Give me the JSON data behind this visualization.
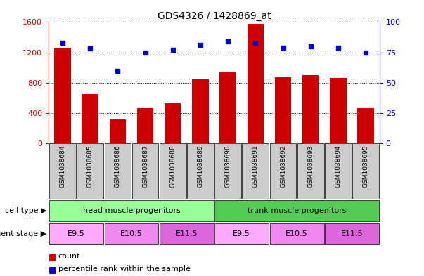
{
  "title": "GDS4326 / 1428869_at",
  "samples": [
    "GSM1038684",
    "GSM1038685",
    "GSM1038686",
    "GSM1038687",
    "GSM1038688",
    "GSM1038689",
    "GSM1038690",
    "GSM1038691",
    "GSM1038692",
    "GSM1038693",
    "GSM1038694",
    "GSM1038695"
  ],
  "counts": [
    1265,
    650,
    320,
    470,
    530,
    850,
    940,
    1580,
    870,
    900,
    860,
    470
  ],
  "percentiles": [
    83,
    78,
    60,
    75,
    77,
    81,
    84,
    83,
    79,
    80,
    79,
    75
  ],
  "ylim_left": [
    0,
    1600
  ],
  "ylim_right": [
    0,
    100
  ],
  "yticks_left": [
    0,
    400,
    800,
    1200,
    1600
  ],
  "yticks_right": [
    0,
    25,
    50,
    75,
    100
  ],
  "bar_color": "#cc0000",
  "dot_color": "#0000cc",
  "cell_type_groups": [
    {
      "label": "head muscle progenitors",
      "start": 0,
      "end": 5,
      "color": "#99ff99"
    },
    {
      "label": "trunk muscle progenitors",
      "start": 6,
      "end": 11,
      "color": "#55cc55"
    }
  ],
  "dev_stage_groups": [
    {
      "label": "E9.5",
      "start": 0,
      "end": 1,
      "color": "#ffaaff"
    },
    {
      "label": "E10.5",
      "start": 2,
      "end": 3,
      "color": "#ee88ee"
    },
    {
      "label": "E11.5",
      "start": 4,
      "end": 5,
      "color": "#dd66dd"
    },
    {
      "label": "E9.5",
      "start": 6,
      "end": 7,
      "color": "#ffaaff"
    },
    {
      "label": "E10.5",
      "start": 8,
      "end": 9,
      "color": "#ee88ee"
    },
    {
      "label": "E11.5",
      "start": 10,
      "end": 11,
      "color": "#dd66dd"
    }
  ],
  "legend_count_label": "count",
  "legend_pct_label": "percentile rank within the sample",
  "cell_type_label": "cell type",
  "dev_stage_label": "development stage",
  "left_axis_color": "#cc0000",
  "right_axis_color": "#0000cc",
  "tick_gray": "#cccccc",
  "bar_width": 0.6
}
